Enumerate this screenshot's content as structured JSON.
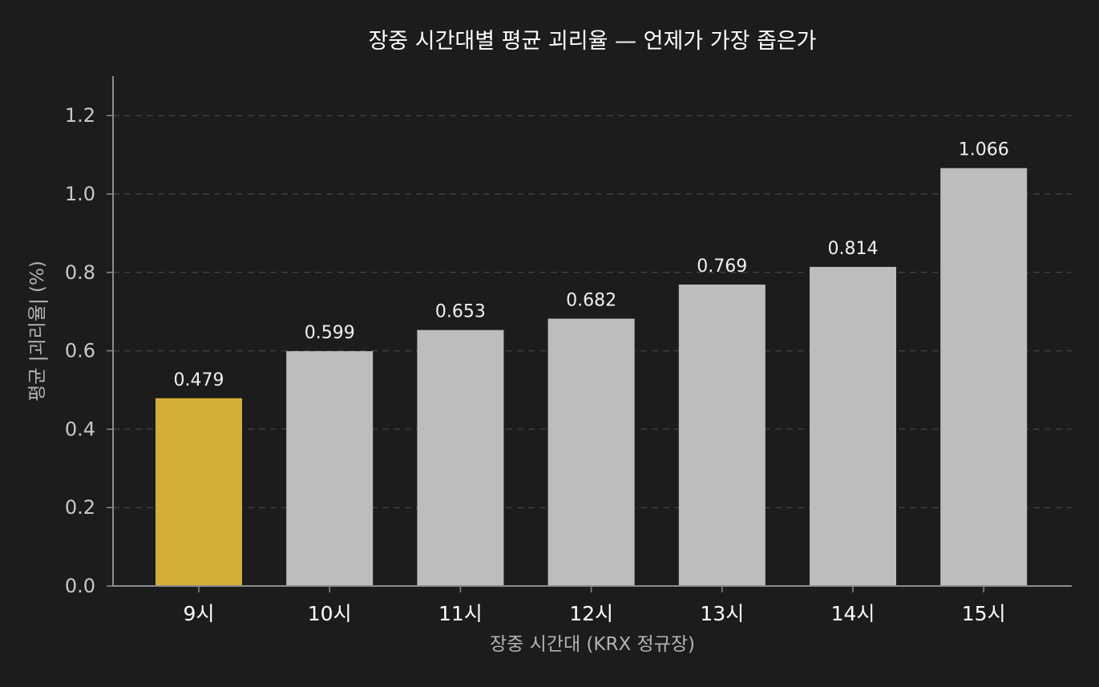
{
  "chart_data": {
    "type": "bar",
    "title": "장중 시간대별 평균 괴리율 — 언제가 가장 좁은가",
    "xlabel": "장중 시간대 (KRX 정규장)",
    "ylabel": "평균 |괴리율| (%)",
    "categories": [
      "9시",
      "10시",
      "11시",
      "12시",
      "13시",
      "14시",
      "15시"
    ],
    "values": [
      0.479,
      0.599,
      0.653,
      0.682,
      0.769,
      0.814,
      1.066
    ],
    "value_labels": [
      "0.479",
      "0.599",
      "0.653",
      "0.682",
      "0.769",
      "0.814",
      "1.066"
    ],
    "ylim": [
      0,
      1.3
    ],
    "yticks": [
      0.0,
      0.2,
      0.4,
      0.6,
      0.8,
      1.0,
      1.2
    ],
    "ytick_labels": [
      "0.0",
      "0.2",
      "0.4",
      "0.6",
      "0.8",
      "1.0",
      "1.2"
    ],
    "grid": "horizontal dashed",
    "colors": {
      "highlight": "#d4af37",
      "bar": "#bdbdbd",
      "background": "#1c1c1c"
    },
    "highlight_index": 0
  }
}
